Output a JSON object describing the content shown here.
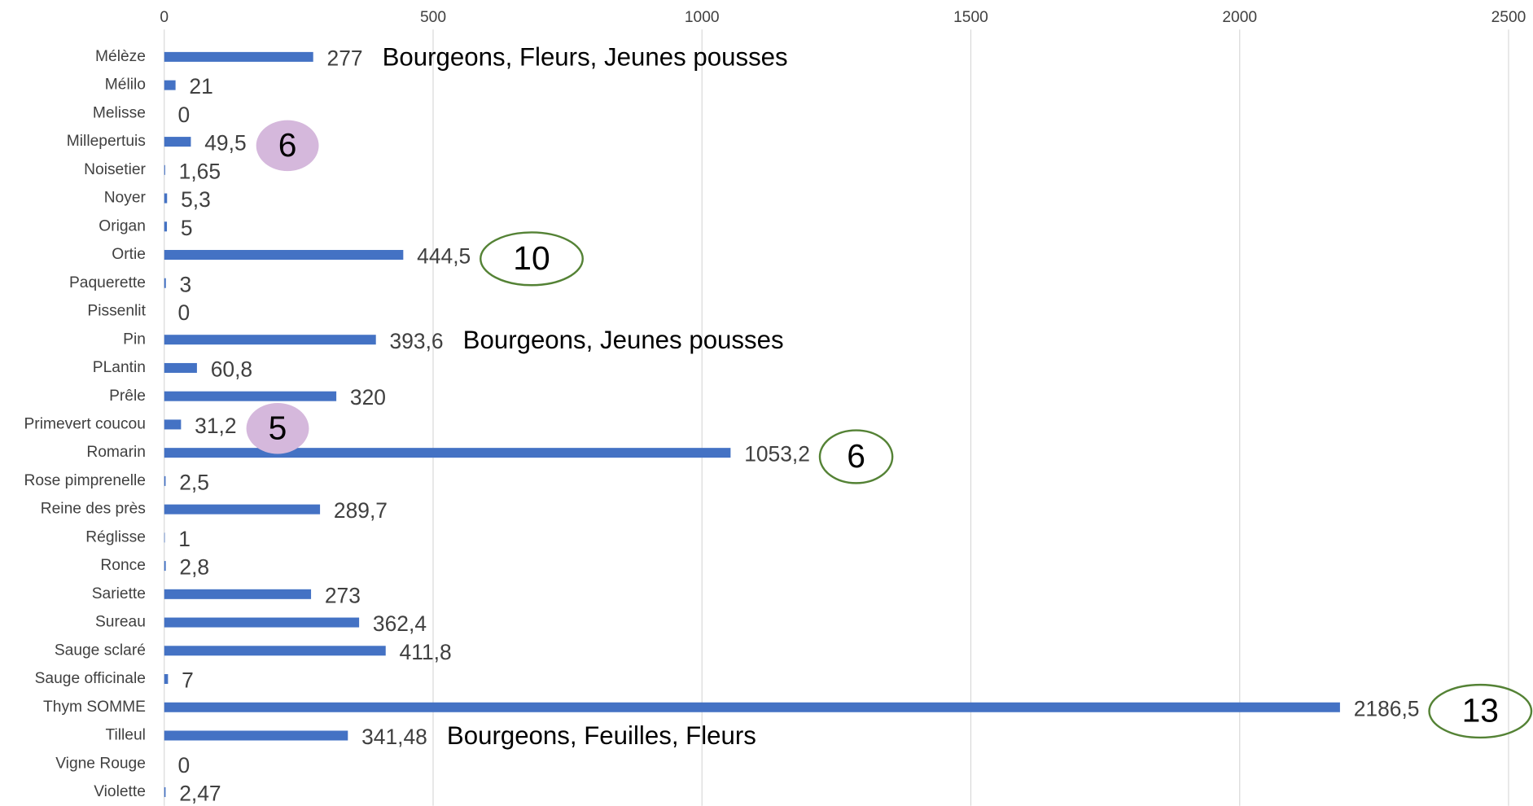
{
  "chart_data": {
    "type": "barh",
    "categories": [
      "Mélèze",
      "Mélilo",
      "Melisse",
      "Millepertuis",
      "Noisetier",
      "Noyer",
      "Origan",
      "Ortie",
      "Paquerette",
      "Pissenlit",
      "Pin",
      "PLantin",
      "Prêle",
      "Primevert coucou",
      "Romarin",
      "Rose pimprenelle",
      "Reine des près",
      "Réglisse",
      "Ronce",
      "Sariette",
      "Sureau",
      "Sauge sclaré",
      "Sauge officinale",
      "Thym SOMME",
      "Tilleul",
      "Vigne Rouge",
      "Violette"
    ],
    "values": [
      277,
      21,
      0,
      49.5,
      1.65,
      5.3,
      5,
      444.5,
      3,
      0,
      393.6,
      60.8,
      320,
      31.2,
      1053.2,
      2.5,
      289.7,
      1,
      2.8,
      273,
      362.4,
      411.8,
      7,
      2186.5,
      341.48,
      0,
      2.47
    ],
    "value_labels": [
      "277",
      "21",
      "0",
      "49,5",
      "1,65",
      "5,3",
      "5",
      "444,5",
      "3",
      "0",
      "393,6",
      "60,8",
      "320",
      "31,2",
      "1053,2",
      "2,5",
      "289,7",
      "1",
      "2,8",
      "273",
      "362,4",
      "411,8",
      "7",
      "2186,5",
      "341,48",
      "0",
      "2,47"
    ],
    "color": "#4472c4",
    "xlim": [
      0,
      2500
    ],
    "xticks": [
      0,
      500,
      1000,
      1500,
      2000,
      2500
    ],
    "grid": true,
    "annotations": [
      {
        "text": "Bourgeons, Fleurs, Jeunes pousses",
        "category": "Mélèze",
        "style": "text"
      },
      {
        "text": "6",
        "category": "Millepertuis",
        "style": "filled",
        "color": "#d5b8dc"
      },
      {
        "text": "10",
        "category": "Ortie",
        "style": "outline",
        "color": "#548235"
      },
      {
        "text": "Bourgeons, Jeunes pousses",
        "category": "Pin",
        "style": "text"
      },
      {
        "text": "5",
        "category": "Primevert coucou",
        "style": "filled",
        "color": "#d5b8dc"
      },
      {
        "text": "6",
        "category": "Romarin",
        "style": "outline",
        "color": "#548235"
      },
      {
        "text": "13",
        "category": "Thym SOMME",
        "style": "outline",
        "color": "#548235"
      },
      {
        "text": "Bourgeons, Feuilles, Fleurs",
        "category": "Tilleul",
        "style": "text"
      }
    ]
  }
}
